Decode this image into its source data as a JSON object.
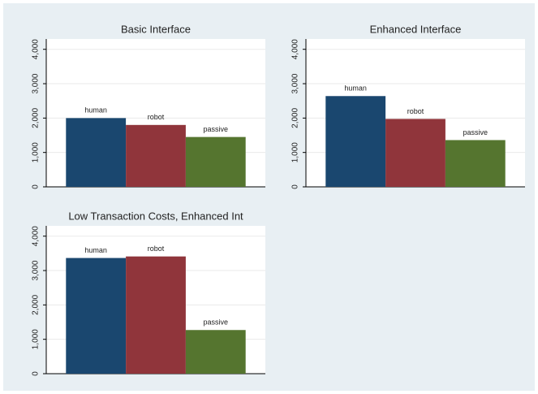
{
  "chart_data": [
    {
      "type": "bar",
      "title": "Basic Interface",
      "categories": [
        "human",
        "robot",
        "passive"
      ],
      "values": [
        2000,
        1800,
        1450
      ],
      "colors": [
        "#1a476f",
        "#90353b",
        "#55752f"
      ],
      "ylim": [
        0,
        4300
      ],
      "yticks": [
        0,
        {
          "value": 1000,
          "label": "1,000"
        },
        {
          "value": 2000,
          "label": "2,000"
        },
        {
          "value": 3000,
          "label": "3,000"
        },
        {
          "value": 4000,
          "label": "4,000"
        }
      ],
      "grid": true
    },
    {
      "type": "bar",
      "title": "Enhanced Interface",
      "categories": [
        "human",
        "robot",
        "passive"
      ],
      "values": [
        2640,
        1975,
        1360
      ],
      "colors": [
        "#1a476f",
        "#90353b",
        "#55752f"
      ],
      "ylim": [
        0,
        4300
      ],
      "yticks": [
        0,
        {
          "value": 1000,
          "label": "1,000"
        },
        {
          "value": 2000,
          "label": "2,000"
        },
        {
          "value": 3000,
          "label": "3,000"
        },
        {
          "value": 4000,
          "label": "4,000"
        }
      ],
      "grid": true
    },
    {
      "type": "bar",
      "title": "Low Transaction Costs, Enhanced Int",
      "categories": [
        "human",
        "robot",
        "passive"
      ],
      "values": [
        3365,
        3410,
        1270
      ],
      "colors": [
        "#1a476f",
        "#90353b",
        "#55752f"
      ],
      "ylim": [
        0,
        4300
      ],
      "yticks": [
        0,
        {
          "value": 1000,
          "label": "1,000"
        },
        {
          "value": 2000,
          "label": "2,000"
        },
        {
          "value": 3000,
          "label": "3,000"
        },
        {
          "value": 4000,
          "label": "4,000"
        }
      ],
      "grid": true
    }
  ]
}
